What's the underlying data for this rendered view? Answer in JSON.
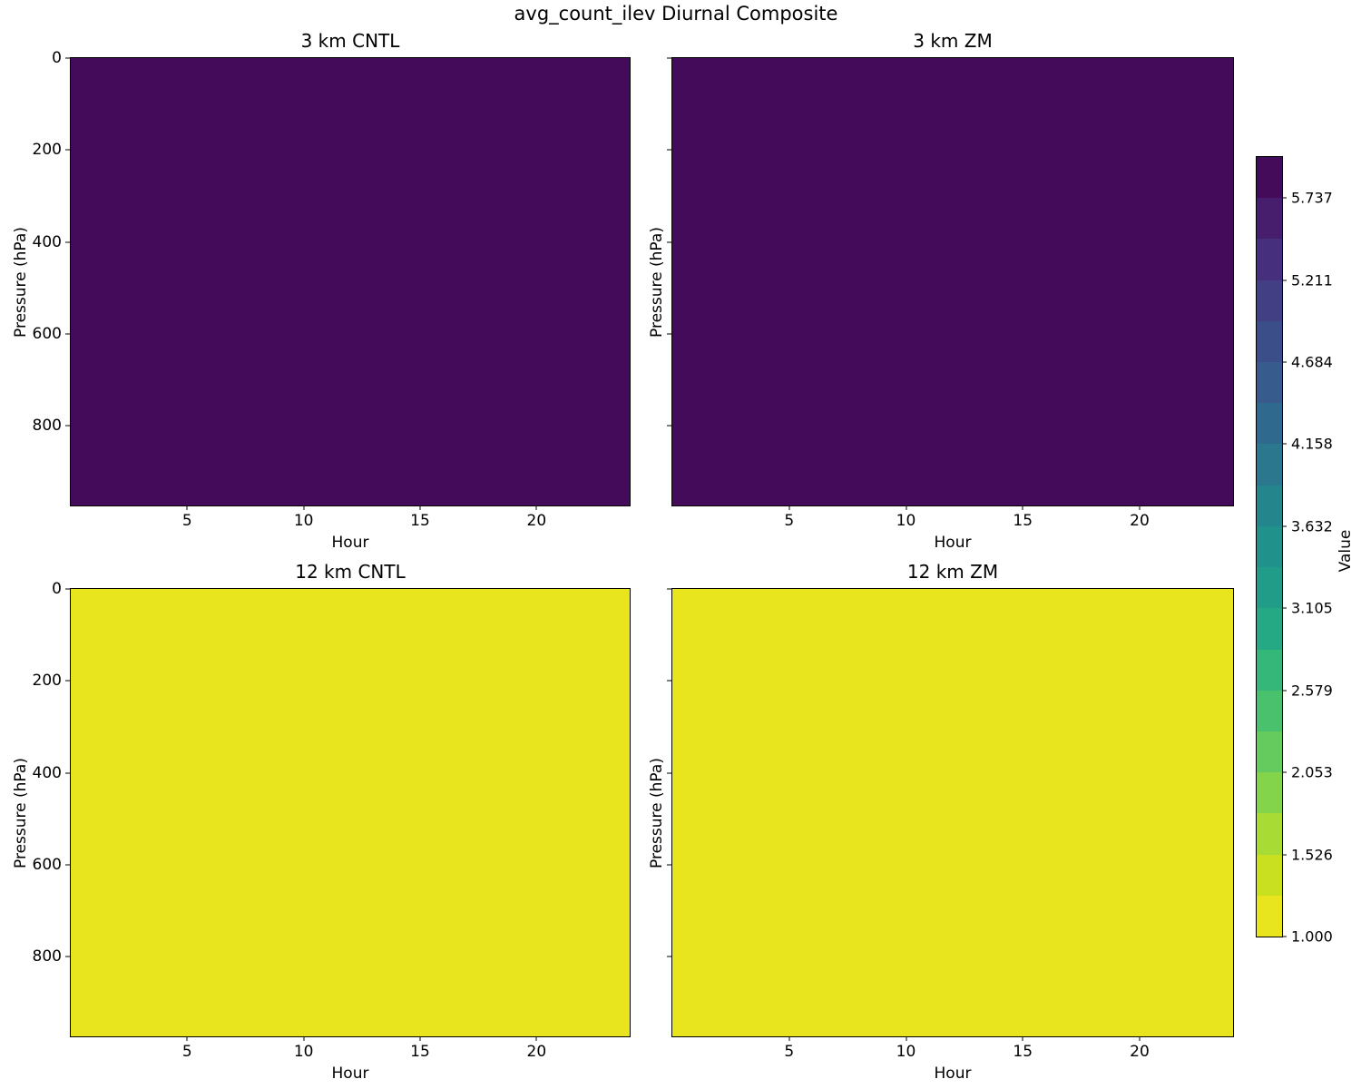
{
  "figure": {
    "suptitle": "avg_count_ilev Diurnal Composite",
    "background_color": "#ffffff"
  },
  "axes_shared": {
    "xlabel": "Hour",
    "ylabel": "Pressure (hPa)",
    "xticks": [
      5,
      10,
      15,
      20
    ],
    "yticks": [
      0,
      200,
      400,
      600,
      800
    ],
    "xlim": [
      0,
      24
    ],
    "ylim": [
      0,
      973
    ],
    "y_inverted": true
  },
  "subplots": [
    {
      "title": "3 km CNTL",
      "xlabel": "Hour",
      "ylabel": "Pressure (hPa)",
      "fill": "#450b5b",
      "show_ytick_labels": true,
      "uniform_value": 6.0
    },
    {
      "title": "3 km ZM",
      "xlabel": "Hour",
      "ylabel": "Pressure (hPa)",
      "fill": "#450b5b",
      "show_ytick_labels": false,
      "uniform_value": 6.0
    },
    {
      "title": "12 km CNTL",
      "xlabel": "Hour",
      "ylabel": "Pressure (hPa)",
      "fill": "#e8e41e",
      "show_ytick_labels": true,
      "uniform_value": 1.0
    },
    {
      "title": "12 km ZM",
      "xlabel": "Hour",
      "ylabel": "Pressure (hPa)",
      "fill": "#e8e41e",
      "show_ytick_labels": false,
      "uniform_value": 1.0
    }
  ],
  "colorbar": {
    "label": "Value",
    "tick_labels": [
      "1.000",
      "1.526",
      "2.053",
      "2.579",
      "3.105",
      "3.632",
      "4.158",
      "4.684",
      "5.211",
      "5.737"
    ],
    "range_min": 1.0,
    "range_max": 6.0,
    "n_segments": 19,
    "segment_colors_bottom_to_top": [
      "#e8e41e",
      "#c8e020",
      "#a8db34",
      "#84d44b",
      "#65cb5e",
      "#4ac16d",
      "#35b779",
      "#25a884",
      "#219c89",
      "#21918c",
      "#24858d",
      "#2a778e",
      "#30698e",
      "#365b8c",
      "#3c4e89",
      "#423f85",
      "#462f7c",
      "#471d6e",
      "#450b5b"
    ]
  },
  "chart_data": {
    "type": "heatmap",
    "title": "avg_count_ilev Diurnal Composite",
    "xlabel": "Hour",
    "ylabel": "Pressure (hPa)",
    "x_range": [
      0,
      24
    ],
    "y_range_hpa": [
      0,
      973
    ],
    "xticks": [
      5,
      10,
      15,
      20
    ],
    "yticks": [
      0,
      200,
      400,
      600,
      800
    ],
    "grid": false,
    "colormap": "viridis reversed, discrete (19 levels from 1.0 to 6.0)",
    "colorbar_ticks": [
      1.0,
      1.526,
      2.053,
      2.579,
      3.105,
      3.632,
      4.158,
      4.684,
      5.211,
      5.737
    ],
    "colorbar_label": "Value",
    "panels": [
      {
        "title": "3 km CNTL",
        "uniform_value": 6.0,
        "color": "#450b5b"
      },
      {
        "title": "3 km ZM",
        "uniform_value": 6.0,
        "color": "#450b5b"
      },
      {
        "title": "12 km CNTL",
        "uniform_value": 1.0,
        "color": "#e8e41e"
      },
      {
        "title": "12 km ZM",
        "uniform_value": 1.0,
        "color": "#e8e41e"
      }
    ]
  }
}
